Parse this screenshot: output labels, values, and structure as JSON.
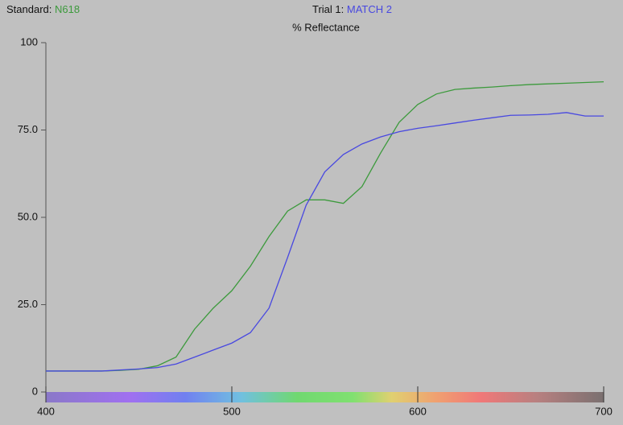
{
  "chart_data": {
    "type": "line",
    "title": "% Reflectance",
    "legend_labels": [
      "Standard:",
      "Trial 1:"
    ],
    "x": [
      400,
      410,
      420,
      430,
      440,
      450,
      460,
      470,
      480,
      490,
      500,
      510,
      520,
      530,
      540,
      550,
      560,
      570,
      580,
      590,
      600,
      610,
      620,
      630,
      640,
      650,
      660,
      670,
      680,
      690,
      700
    ],
    "series": [
      {
        "name": "N618",
        "color": "#3c9a3c",
        "values": [
          6,
          6,
          6,
          6,
          6.2,
          6.5,
          7.5,
          10,
          18,
          24,
          29,
          36,
          44.5,
          51.8,
          55,
          55,
          54,
          58.8,
          68.4,
          77.2,
          82.3,
          85.3,
          86.6,
          87,
          87.3,
          87.7,
          88,
          88.2,
          88.4,
          88.6,
          88.8
        ]
      },
      {
        "name": "MATCH 2",
        "color": "#4848e0",
        "values": [
          6,
          6,
          6,
          6,
          6.3,
          6.6,
          7,
          8,
          10,
          12,
          14,
          17,
          24,
          38.5,
          53.5,
          63,
          68,
          71,
          73,
          74.5,
          75.5,
          76.2,
          77,
          77.8,
          78.5,
          79.2,
          79.3,
          79.5,
          80,
          79,
          79
        ]
      }
    ],
    "xlim": [
      400,
      700
    ],
    "xticks": [
      400,
      500,
      600,
      700
    ],
    "ylim": [
      0,
      100
    ],
    "yticks": [
      0,
      {
        "value": 25,
        "label": "25.0"
      },
      {
        "value": 50,
        "label": "50.0"
      },
      {
        "value": 75,
        "label": "75.0"
      },
      100
    ]
  }
}
